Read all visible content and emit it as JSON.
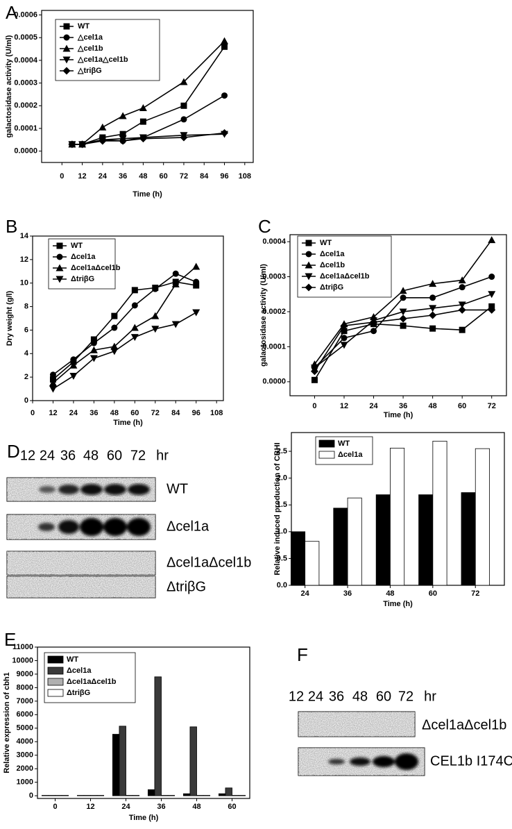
{
  "chart_data": [
    {
      "type": "line",
      "panel": "A",
      "xlabel": "Time (h)",
      "ylabel": "galactosidase activity (U/ml)",
      "x": [
        6,
        12,
        24,
        36,
        48,
        72,
        96
      ],
      "xlim": [
        -12,
        113
      ],
      "xticks": [
        0,
        12,
        24,
        36,
        48,
        60,
        72,
        84,
        96,
        108
      ],
      "ylim": [
        -5e-05,
        0.00062
      ],
      "yticks": [
        {
          "value": 0,
          "label": "0.0000"
        },
        {
          "value": 0.0001,
          "label": "0.0001"
        },
        {
          "value": 0.0002,
          "label": "0.0002"
        },
        {
          "value": 0.0003,
          "label": "0.0003"
        },
        {
          "value": 0.0004,
          "label": "0.0004"
        },
        {
          "value": 0.0005,
          "label": "0.0005"
        },
        {
          "value": 0.0006,
          "label": "0.0006"
        }
      ],
      "series": [
        {
          "name": "WT",
          "color": "#000000",
          "marker": "square",
          "values": [
            3e-05,
            3e-05,
            6e-05,
            7.5e-05,
            0.00013,
            0.0002,
            0.00046
          ]
        },
        {
          "name": "△cel1a",
          "color": "#000000",
          "marker": "circle",
          "values": [
            3e-05,
            3e-05,
            5e-05,
            4.5e-05,
            6e-05,
            0.00014,
            0.000245
          ]
        },
        {
          "name": "△cel1b",
          "color": "#000000",
          "marker": "triangle-up",
          "values": [
            3e-05,
            3e-05,
            0.000105,
            0.000155,
            0.00019,
            0.000305,
            0.000485
          ]
        },
        {
          "name": "△cel1a△cel1b",
          "color": "#000000",
          "marker": "triangle-down",
          "values": [
            3e-05,
            3e-05,
            5e-05,
            5.5e-05,
            6e-05,
            7e-05,
            7.5e-05
          ]
        },
        {
          "name": "△triβG",
          "color": "#000000",
          "marker": "diamond",
          "values": [
            3e-05,
            3e-05,
            4.5e-05,
            4.5e-05,
            5.5e-05,
            6e-05,
            8e-05
          ]
        }
      ]
    },
    {
      "type": "line",
      "panel": "B",
      "xlabel": "Time (h)",
      "ylabel": "Dry weight (g/l)",
      "x": [
        12,
        24,
        36,
        48,
        60,
        72,
        84,
        96
      ],
      "xlim": [
        0,
        112
      ],
      "xticks": [
        0,
        12,
        24,
        36,
        48,
        60,
        72,
        84,
        96,
        108
      ],
      "ylim": [
        0,
        14
      ],
      "yticks": [
        0,
        2,
        4,
        6,
        8,
        10,
        12,
        14
      ],
      "series": [
        {
          "name": "WT",
          "color": "#000000",
          "marker": "square",
          "values": [
            1.8,
            3.3,
            5.2,
            7.2,
            9.4,
            9.6,
            10.1,
            9.8
          ]
        },
        {
          "name": "Δcel1a",
          "color": "#000000",
          "marker": "circle",
          "values": [
            2.2,
            3.5,
            4.9,
            6.2,
            8.1,
            9.5,
            10.8,
            10.1
          ]
        },
        {
          "name": "Δcel1aΔcel1b",
          "color": "#000000",
          "marker": "triangle-up",
          "values": [
            1.5,
            3.0,
            4.3,
            4.6,
            6.2,
            7.2,
            9.9,
            11.4
          ]
        },
        {
          "name": "ΔtriβG",
          "color": "#000000",
          "marker": "triangle-down",
          "values": [
            1.0,
            2.1,
            3.6,
            4.2,
            5.4,
            6.1,
            6.5,
            7.5
          ]
        }
      ]
    },
    {
      "type": "line",
      "panel": "C",
      "xlabel": "Time (h)",
      "ylabel": "galactosidase activity (U/ml)",
      "x": [
        0,
        12,
        24,
        36,
        48,
        60,
        72
      ],
      "xlim": [
        -10,
        78
      ],
      "xticks": [
        0,
        12,
        24,
        36,
        48,
        60,
        72
      ],
      "ylim": [
        -4e-05,
        0.00042
      ],
      "yticks": [
        {
          "value": 0,
          "label": "0.0000"
        },
        {
          "value": 0.0001,
          "label": "0.0001"
        },
        {
          "value": 0.0002,
          "label": "0.0002"
        },
        {
          "value": 0.0003,
          "label": "0.0003"
        },
        {
          "value": 0.0004,
          "label": "0.0004"
        }
      ],
      "series": [
        {
          "name": "WT",
          "color": "#000000",
          "marker": "square",
          "values": [
            5e-06,
            0.000145,
            0.000165,
            0.00016,
            0.000152,
            0.000148,
            0.000215
          ]
        },
        {
          "name": "Δcel1a",
          "color": "#000000",
          "marker": "circle",
          "values": [
            4e-05,
            0.000125,
            0.000145,
            0.00024,
            0.00024,
            0.00027,
            0.0003
          ]
        },
        {
          "name": "Δcel1b",
          "color": "#000000",
          "marker": "triangle-up",
          "values": [
            5e-05,
            0.000165,
            0.000185,
            0.00026,
            0.00028,
            0.00029,
            0.000405
          ]
        },
        {
          "name": "Δcel1aΔcel1b",
          "color": "#000000",
          "marker": "triangle-down",
          "values": [
            4e-05,
            0.000105,
            0.000175,
            0.0002,
            0.00021,
            0.00022,
            0.00025
          ]
        },
        {
          "name": "ΔtriβG",
          "color": "#000000",
          "marker": "diamond",
          "values": [
            3e-05,
            0.00016,
            0.00017,
            0.00018,
            0.00019,
            0.000205,
            0.000205
          ]
        }
      ]
    },
    {
      "type": "bar",
      "xlabel": "Time (h)",
      "ylabel": "Relative induced production of CBHI",
      "categories": [
        "24",
        "36",
        "48",
        "60",
        "72"
      ],
      "ylim": [
        0,
        2.85
      ],
      "yticks": [
        {
          "value": 0,
          "label": "0.0"
        },
        {
          "value": 0.5,
          "label": "0.5"
        },
        {
          "value": 1,
          "label": "1.0"
        },
        {
          "value": 1.5,
          "label": "1.5"
        },
        {
          "value": 2,
          "label": "2.0"
        },
        {
          "value": 2.5,
          "label": "2.5"
        }
      ],
      "series": [
        {
          "name": "WT",
          "color": "#000000",
          "values": [
            1.0,
            1.44,
            1.69,
            1.69,
            1.73
          ]
        },
        {
          "name": "Δcel1a",
          "color": "#ffffff",
          "values": [
            0.82,
            1.63,
            2.56,
            2.69,
            2.55
          ]
        }
      ]
    },
    {
      "type": "bar",
      "panel": "E",
      "xlabel": "Time (h)",
      "ylabel": "Relative expression of cbh1",
      "categories": [
        "0",
        "12",
        "24",
        "36",
        "48",
        "60"
      ],
      "ylim": [
        -200,
        11000
      ],
      "yticks": [
        0,
        1000,
        2000,
        3000,
        4000,
        5000,
        6000,
        7000,
        8000,
        9000,
        10000,
        11000
      ],
      "series": [
        {
          "name": "WT",
          "color": "#000000",
          "values": [
            30,
            30,
            4550,
            450,
            150,
            150
          ]
        },
        {
          "name": "Δcel1a",
          "color": "#3a3a3a",
          "values": [
            30,
            30,
            5150,
            8800,
            5100,
            580
          ]
        },
        {
          "name": "Δcel1aΔcel1b",
          "color": "#b0b0b0",
          "values": [
            30,
            30,
            30,
            30,
            30,
            30
          ]
        },
        {
          "name": "ΔtriβG",
          "color": "#ffffff",
          "values": [
            30,
            30,
            30,
            30,
            30,
            30
          ]
        }
      ]
    }
  ],
  "blots": {
    "D": {
      "panel": "D",
      "lanes": [
        "12",
        "24",
        "36",
        "48",
        "60",
        "72"
      ],
      "unit": "hr",
      "rows": [
        "WT",
        "Δcel1a",
        "Δcel1aΔcel1b",
        "ΔtriβG"
      ]
    },
    "F": {
      "panel": "F",
      "lanes": [
        "12",
        "24",
        "36",
        "48",
        "60",
        "72"
      ],
      "unit": "hr",
      "rows": [
        "Δcel1aΔcel1b",
        "CEL1b I174C"
      ]
    }
  }
}
